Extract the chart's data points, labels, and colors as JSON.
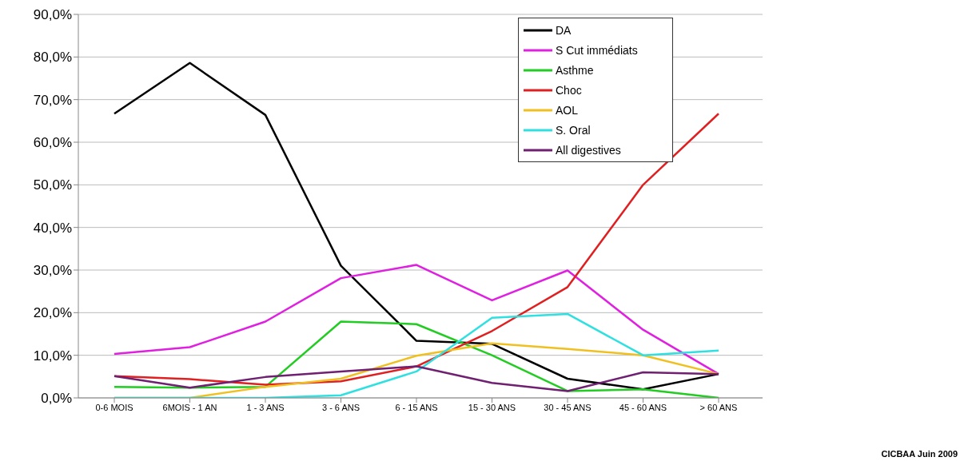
{
  "chart_data": {
    "type": "line",
    "categories": [
      "0-6 MOIS",
      "6MOIS - 1 AN",
      "1 - 3 ANS",
      "3 - 6 ANS",
      "6 - 15 ANS",
      "15 - 30 ANS",
      "30 - 45 ANS",
      "45 - 60 ANS",
      "> 60 ANS"
    ],
    "series": [
      {
        "name": "DA",
        "color": "#000000",
        "values": [
          66.7,
          78.6,
          66.4,
          31,
          13.4,
          12.7,
          4.5,
          2,
          5.6
        ]
      },
      {
        "name": "S Cut immédiats",
        "color": "#e020e0",
        "values": [
          10.3,
          11.9,
          17.9,
          28.1,
          31.2,
          22.9,
          29.9,
          16,
          5.6
        ]
      },
      {
        "name": "Asthme",
        "color": "#22cc22",
        "values": [
          2.6,
          2.4,
          2.6,
          17.9,
          17.3,
          10,
          1.6,
          2,
          0
        ]
      },
      {
        "name": "Choc",
        "color": "#e02020",
        "values": [
          5.1,
          4.4,
          3.1,
          3.9,
          7.4,
          15.7,
          26,
          50,
          66.7
        ]
      },
      {
        "name": "AOL",
        "color": "#f0c020",
        "values": [
          0,
          0,
          2.6,
          4.5,
          9.9,
          12.8,
          11.5,
          10,
          5.6
        ]
      },
      {
        "name": "S. Oral",
        "color": "#30e0e0",
        "values": [
          0,
          0,
          0,
          0.6,
          6.2,
          18.8,
          19.7,
          10,
          11.1
        ]
      },
      {
        "name": "All digestives",
        "color": "#702070",
        "values": [
          5.1,
          2.4,
          4.9,
          6.2,
          7.4,
          3.5,
          1.6,
          6,
          5.6
        ]
      }
    ],
    "ylim": [
      0,
      90
    ],
    "yticks": [
      {
        "value": 0,
        "label": "0,0%"
      },
      {
        "value": 10,
        "label": "10,0%"
      },
      {
        "value": 20,
        "label": "20,0%"
      },
      {
        "value": 30,
        "label": "30,0%"
      },
      {
        "value": 40,
        "label": "40,0%"
      },
      {
        "value": 50,
        "label": "50,0%"
      },
      {
        "value": 60,
        "label": "60,0%"
      },
      {
        "value": 70,
        "label": "70,0%"
      },
      {
        "value": 80,
        "label": "80,0%"
      },
      {
        "value": 90,
        "label": "90,0%"
      }
    ],
    "grid": "y",
    "legend": "top right",
    "marker": "none",
    "line_style": "solid",
    "annotations": [
      "CICBAA Juin 2009"
    ]
  }
}
